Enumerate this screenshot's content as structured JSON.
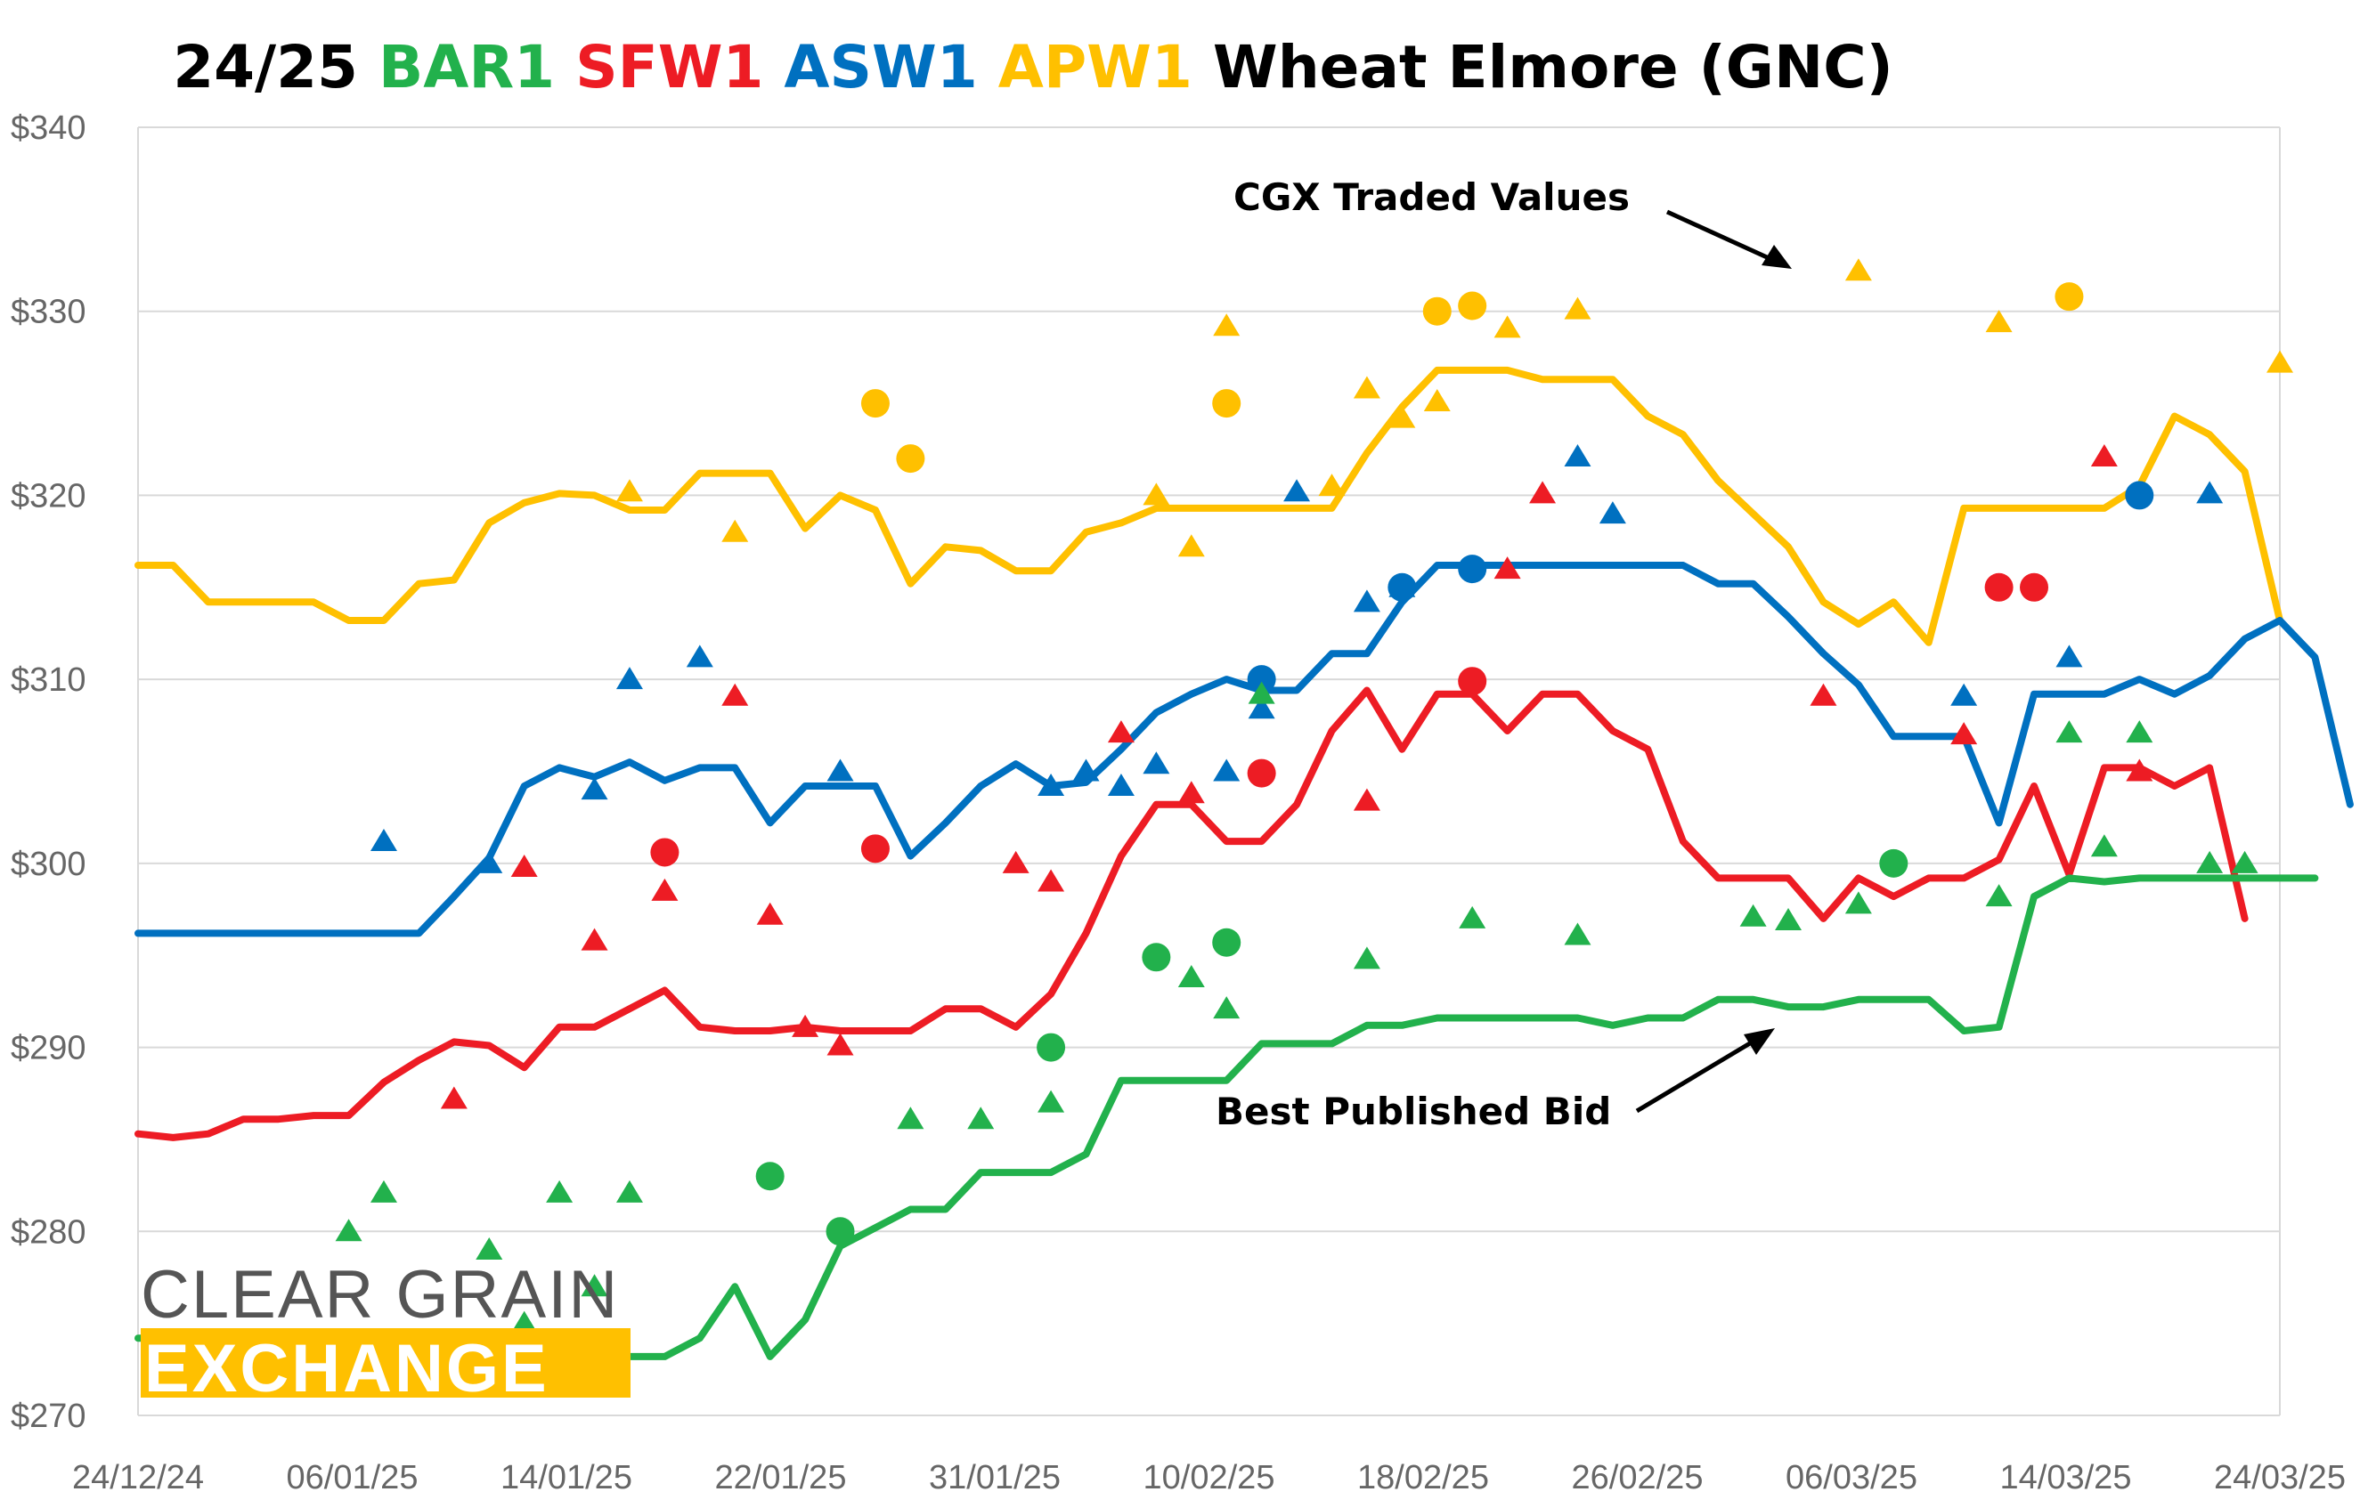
{
  "chart_data": {
    "type": "line",
    "title_parts": [
      {
        "text": "24/25 ",
        "color": "#000000"
      },
      {
        "text": "BAR1 ",
        "color": "#22b14c"
      },
      {
        "text": "SFW1 ",
        "color": "#ed1c24"
      },
      {
        "text": "ASW1 ",
        "color": "#0070c0"
      },
      {
        "text": "APW1 ",
        "color": "#ffc000"
      },
      {
        "text": "Wheat Elmore (GNC)",
        "color": "#000000"
      }
    ],
    "x_ticks": [
      "24/12/24",
      "06/01/25",
      "14/01/25",
      "22/01/25",
      "31/01/25",
      "10/02/25",
      "18/02/25",
      "26/02/25",
      "06/03/25",
      "14/03/25",
      "24/03/25"
    ],
    "y_ticks": [
      "$270",
      "$280",
      "$290",
      "$300",
      "$310",
      "$320",
      "$330",
      "$340"
    ],
    "ylim": [
      270,
      340
    ],
    "grid": true,
    "annotations": {
      "traded": "CGX Traded Values",
      "bid": "Best Published Bid"
    },
    "logo": {
      "line1": "CLEAR GRAIN",
      "line2": "EXCHANGE"
    },
    "series": [
      {
        "color": "#ffc000",
        "line": [
          316.2,
          316.2,
          314.2,
          314.2,
          314.2,
          314.2,
          313.2,
          313.2,
          315.2,
          315.4,
          318.5,
          319.6,
          320.1,
          320.0,
          319.2,
          319.2,
          321.2,
          321.2,
          321.2,
          318.2,
          320.0,
          319.2,
          315.2,
          317.2,
          317.0,
          315.9,
          315.9,
          318.0,
          318.5,
          319.3,
          319.3,
          319.3,
          319.3,
          319.3,
          319.3,
          322.3,
          324.8,
          326.8,
          326.8,
          326.8,
          326.3,
          326.3,
          326.3,
          324.3,
          323.3,
          320.8,
          319.0,
          317.2,
          314.2,
          313.0,
          314.2,
          312.0,
          319.3,
          319.3,
          319.3,
          319.3,
          319.3,
          320.5,
          324.3,
          323.3,
          321.3,
          313.2
        ],
        "traded_circles": [
          [
            21,
            325
          ],
          [
            22,
            322
          ],
          [
            31,
            325
          ],
          [
            37,
            330
          ],
          [
            38,
            330.3
          ],
          [
            55,
            330.8
          ]
        ],
        "traded_triangles": [
          [
            14,
            320.2
          ],
          [
            17,
            318.0
          ],
          [
            29,
            320.0
          ],
          [
            30,
            317.2
          ],
          [
            31,
            329.2
          ],
          [
            34,
            320.5
          ],
          [
            35,
            325.8
          ],
          [
            36,
            324.2
          ],
          [
            37,
            325.1
          ],
          [
            39,
            329.1
          ],
          [
            41,
            330.1
          ],
          [
            49,
            332.2
          ],
          [
            53,
            329.4
          ],
          [
            61,
            327.2
          ]
        ]
      },
      {
        "color": "#0070c0",
        "line": [
          296.2,
          296.2,
          296.2,
          296.2,
          296.2,
          296.2,
          296.2,
          296.2,
          296.2,
          298.2,
          300.3,
          304.2,
          305.2,
          304.7,
          305.5,
          304.5,
          305.2,
          305.2,
          302.2,
          304.2,
          304.2,
          304.2,
          300.4,
          302.2,
          304.2,
          305.4,
          304.2,
          304.4,
          306.2,
          308.2,
          309.2,
          310.0,
          309.4,
          309.4,
          311.4,
          311.4,
          314.2,
          316.2,
          316.2,
          316.2,
          316.2,
          316.2,
          316.2,
          316.2,
          316.2,
          315.2,
          315.2,
          313.4,
          311.4,
          309.7,
          306.9,
          306.9,
          306.9,
          302.2,
          309.2,
          309.2,
          309.2,
          310.0,
          309.2,
          310.2,
          312.2,
          313.2,
          311.2,
          303.2
        ],
        "traded_circles": [
          [
            32,
            310.0
          ],
          [
            36,
            315.0
          ],
          [
            38,
            316.0
          ],
          [
            57,
            320.0
          ]
        ],
        "traded_triangles": [
          [
            7,
            301.2
          ],
          [
            10,
            300.0
          ],
          [
            13,
            304.0
          ],
          [
            14,
            310.0
          ],
          [
            16,
            311.2
          ],
          [
            20,
            305.0
          ],
          [
            26,
            304.2
          ],
          [
            27,
            305.0
          ],
          [
            28,
            304.2
          ],
          [
            29,
            305.4
          ],
          [
            31,
            305.0
          ],
          [
            32,
            308.4
          ],
          [
            33,
            320.2
          ],
          [
            35,
            314.2
          ],
          [
            36,
            315.0
          ],
          [
            41,
            322.1
          ],
          [
            42,
            319.0
          ],
          [
            52,
            309.1
          ],
          [
            55,
            311.2
          ],
          [
            59,
            320.1
          ]
        ]
      },
      {
        "color": "#ed1c24",
        "line": [
          285.3,
          285.1,
          285.3,
          286.1,
          286.1,
          286.3,
          286.3,
          288.1,
          289.3,
          290.3,
          290.1,
          288.9,
          291.1,
          291.1,
          292.1,
          293.1,
          291.1,
          290.9,
          290.9,
          291.1,
          290.9,
          290.9,
          290.9,
          292.1,
          292.1,
          291.1,
          292.9,
          296.2,
          300.4,
          303.2,
          303.2,
          301.2,
          301.2,
          303.2,
          307.2,
          309.4,
          306.2,
          309.2,
          309.2,
          307.2,
          309.2,
          309.2,
          307.2,
          306.2,
          301.2,
          299.2,
          299.2,
          299.2,
          297.0,
          299.2,
          298.2,
          299.2,
          299.2,
          300.2,
          304.2,
          299.4,
          305.2,
          305.2,
          304.2,
          305.2,
          297.0
        ],
        "traded_circles": [
          [
            15,
            300.6
          ],
          [
            21,
            300.8
          ],
          [
            32,
            304.9
          ],
          [
            38,
            309.9
          ],
          [
            53,
            315.0
          ],
          [
            54,
            315.0
          ]
        ],
        "traded_triangles": [
          [
            9,
            287.2
          ],
          [
            11,
            299.8
          ],
          [
            13,
            295.8
          ],
          [
            15,
            298.5
          ],
          [
            17,
            309.1
          ],
          [
            18,
            297.2
          ],
          [
            19,
            291.1
          ],
          [
            20,
            290.1
          ],
          [
            25,
            300.0
          ],
          [
            26,
            299.0
          ],
          [
            28,
            307.1
          ],
          [
            30,
            303.8
          ],
          [
            35,
            303.4
          ],
          [
            39,
            316.0
          ],
          [
            40,
            320.1
          ],
          [
            48,
            309.1
          ],
          [
            52,
            307.0
          ],
          [
            56,
            322.1
          ],
          [
            57,
            305.0
          ]
        ]
      },
      {
        "color": "#22b14c",
        "line": [
          274.2,
          274.2,
          274.2,
          274.2,
          274.2,
          274.2,
          274.2,
          274.2,
          274.2,
          273.2,
          273.2,
          273.2,
          273.2,
          273.2,
          273.2,
          273.2,
          274.2,
          277.0,
          273.2,
          275.2,
          279.2,
          280.2,
          281.2,
          281.2,
          283.2,
          283.2,
          283.2,
          284.2,
          288.2,
          288.2,
          288.2,
          288.2,
          290.2,
          290.2,
          290.2,
          291.2,
          291.2,
          291.6,
          291.6,
          291.6,
          291.6,
          291.6,
          291.2,
          291.6,
          291.6,
          292.6,
          292.6,
          292.2,
          292.2,
          292.6,
          292.6,
          292.6,
          290.9,
          291.1,
          298.2,
          299.2,
          299.0,
          299.2,
          299.2,
          299.2,
          299.2,
          299.2,
          299.2
        ],
        "traded_circles": [
          [
            18,
            283.0
          ],
          [
            20,
            280.0
          ],
          [
            26,
            290.0
          ],
          [
            29,
            294.9
          ],
          [
            31,
            295.7
          ],
          [
            50,
            300.0
          ]
        ],
        "traded_triangles": [
          [
            6,
            280.0
          ],
          [
            7,
            282.1
          ],
          [
            10,
            279.0
          ],
          [
            11,
            275.0
          ],
          [
            12,
            282.1
          ],
          [
            13,
            277.0
          ],
          [
            14,
            282.1
          ],
          [
            22,
            286.1
          ],
          [
            24,
            286.1
          ],
          [
            26,
            287.0
          ],
          [
            30,
            293.8
          ],
          [
            31,
            292.1
          ],
          [
            32,
            309.2
          ],
          [
            35,
            294.8
          ],
          [
            38,
            297.0
          ],
          [
            41,
            296.1
          ],
          [
            46,
            297.1
          ],
          [
            47,
            296.9
          ],
          [
            49,
            297.8
          ],
          [
            53,
            298.2
          ],
          [
            55,
            307.1
          ],
          [
            56,
            300.9
          ],
          [
            57,
            307.1
          ],
          [
            59,
            300.0
          ],
          [
            60,
            300.0
          ]
        ]
      }
    ]
  }
}
